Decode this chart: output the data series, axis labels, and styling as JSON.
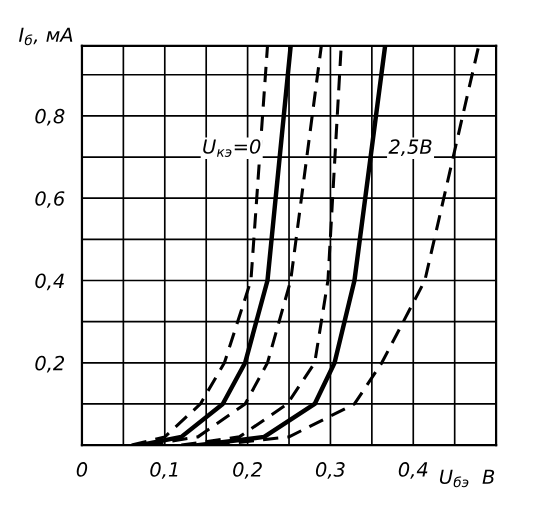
{
  "chart_data": {
    "type": "line",
    "ylabel": "I$_{б}$, мА",
    "xlabel": "U$_{бэ}$  В",
    "annotations": [
      "U$_{кэ}$=0",
      "2,5В"
    ],
    "xlim": [
      0,
      0.5
    ],
    "ylim": [
      0,
      0.97
    ],
    "xticks": [
      {
        "value": 0,
        "label": "0"
      },
      {
        "value": 0.05,
        "label": null
      },
      {
        "value": 0.1,
        "label": "0,1"
      },
      {
        "value": 0.15,
        "label": null
      },
      {
        "value": 0.2,
        "label": "0,2"
      },
      {
        "value": 0.25,
        "label": null
      },
      {
        "value": 0.3,
        "label": "0,3"
      },
      {
        "value": 0.35,
        "label": null
      },
      {
        "value": 0.4,
        "label": "0,4"
      },
      {
        "value": 0.45,
        "label": null
      }
    ],
    "yticks": [
      {
        "value": 0,
        "label": null
      },
      {
        "value": 0.1,
        "label": null
      },
      {
        "value": 0.2,
        "label": "0,2"
      },
      {
        "value": 0.3,
        "label": null
      },
      {
        "value": 0.4,
        "label": "0,4"
      },
      {
        "value": 0.5,
        "label": null
      },
      {
        "value": 0.6,
        "label": "0,6"
      },
      {
        "value": 0.7,
        "label": null
      },
      {
        "value": 0.8,
        "label": "0,8"
      },
      {
        "value": 0.9,
        "label": null
      }
    ],
    "grid": true,
    "series": [
      {
        "color": "#000000",
        "line_style": "dashed",
        "x": [
          0.06,
          0.1,
          0.143,
          0.172,
          0.204,
          0.224
        ],
        "values": [
          0,
          0.02,
          0.1,
          0.2,
          0.4,
          0.97
        ]
      },
      {
        "color": "#000000",
        "line_style": "solid",
        "x": [
          0.07,
          0.12,
          0.17,
          0.197,
          0.224,
          0.252
        ],
        "values": [
          0,
          0.02,
          0.1,
          0.2,
          0.4,
          0.97
        ]
      },
      {
        "color": "#000000",
        "line_style": "dashed",
        "x": [
          0.08,
          0.14,
          0.197,
          0.224,
          0.252,
          0.289
        ],
        "values": [
          0,
          0.02,
          0.1,
          0.2,
          0.4,
          0.97
        ]
      },
      {
        "color": "#000000",
        "line_style": "dashed",
        "x": [
          0.12,
          0.19,
          0.248,
          0.281,
          0.297,
          0.313
        ],
        "values": [
          0,
          0.02,
          0.1,
          0.2,
          0.4,
          0.97
        ]
      },
      {
        "color": "#000000",
        "line_style": "solid",
        "x": [
          0.14,
          0.22,
          0.281,
          0.305,
          0.329,
          0.366
        ],
        "values": [
          0,
          0.02,
          0.1,
          0.2,
          0.4,
          0.97
        ]
      },
      {
        "color": "#000000",
        "line_style": "dashed",
        "x": [
          0.16,
          0.25,
          0.329,
          0.362,
          0.414,
          0.479
        ],
        "values": [
          0,
          0.02,
          0.1,
          0.2,
          0.4,
          0.97
        ]
      }
    ]
  }
}
